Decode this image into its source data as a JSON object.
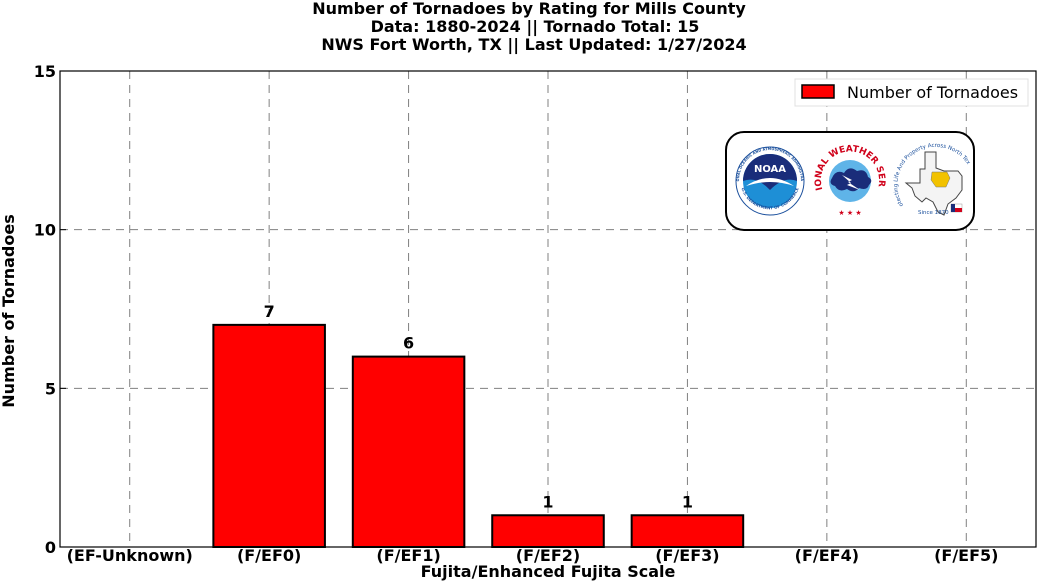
{
  "chart_data": {
    "type": "bar",
    "title_lines": [
      "Number of Tornadoes by Rating for Mills County",
      "Data: 1880-2024 || Tornado Total: 15",
      "NWS Fort Worth, TX || Last Updated: 1/27/2024"
    ],
    "xlabel": "Fujita/Enhanced Fujita Scale",
    "ylabel": "Number of Tornadoes",
    "categories": [
      "(EF-Unknown)",
      "(F/EF0)",
      "(F/EF1)",
      "(F/EF2)",
      "(F/EF3)",
      "(F/EF4)",
      "(F/EF5)"
    ],
    "series": [
      {
        "name": "Number of Tornadoes",
        "values": [
          0,
          7,
          6,
          1,
          1,
          0,
          0
        ],
        "color": "#ff0000"
      }
    ],
    "data_labels": [
      "",
      "7",
      "6",
      "1",
      "1",
      "",
      ""
    ],
    "ylim": [
      0,
      15
    ],
    "yticks": [
      0,
      5,
      10,
      15
    ],
    "grid": true,
    "legend_position": "top-right"
  },
  "logos": {
    "noaa": {
      "name": "NOAA",
      "icon": "noaa-logo",
      "seal_text": "NATIONAL OCEANIC AND ATMOSPHERIC ADMINISTRATION",
      "bottom_text": "U.S. DEPARTMENT OF COMMERCE"
    },
    "nws": {
      "icon": "nws-logo",
      "ring_text": "NATIONAL WEATHER SERVICE"
    },
    "texas": {
      "icon": "texas-map-logo",
      "ring_text": "Protecting Life And Property Across North Texas",
      "since_text": "Since 1870"
    }
  },
  "colors": {
    "bar": "#ff0000",
    "edge": "#000000",
    "grid": "#808080"
  }
}
